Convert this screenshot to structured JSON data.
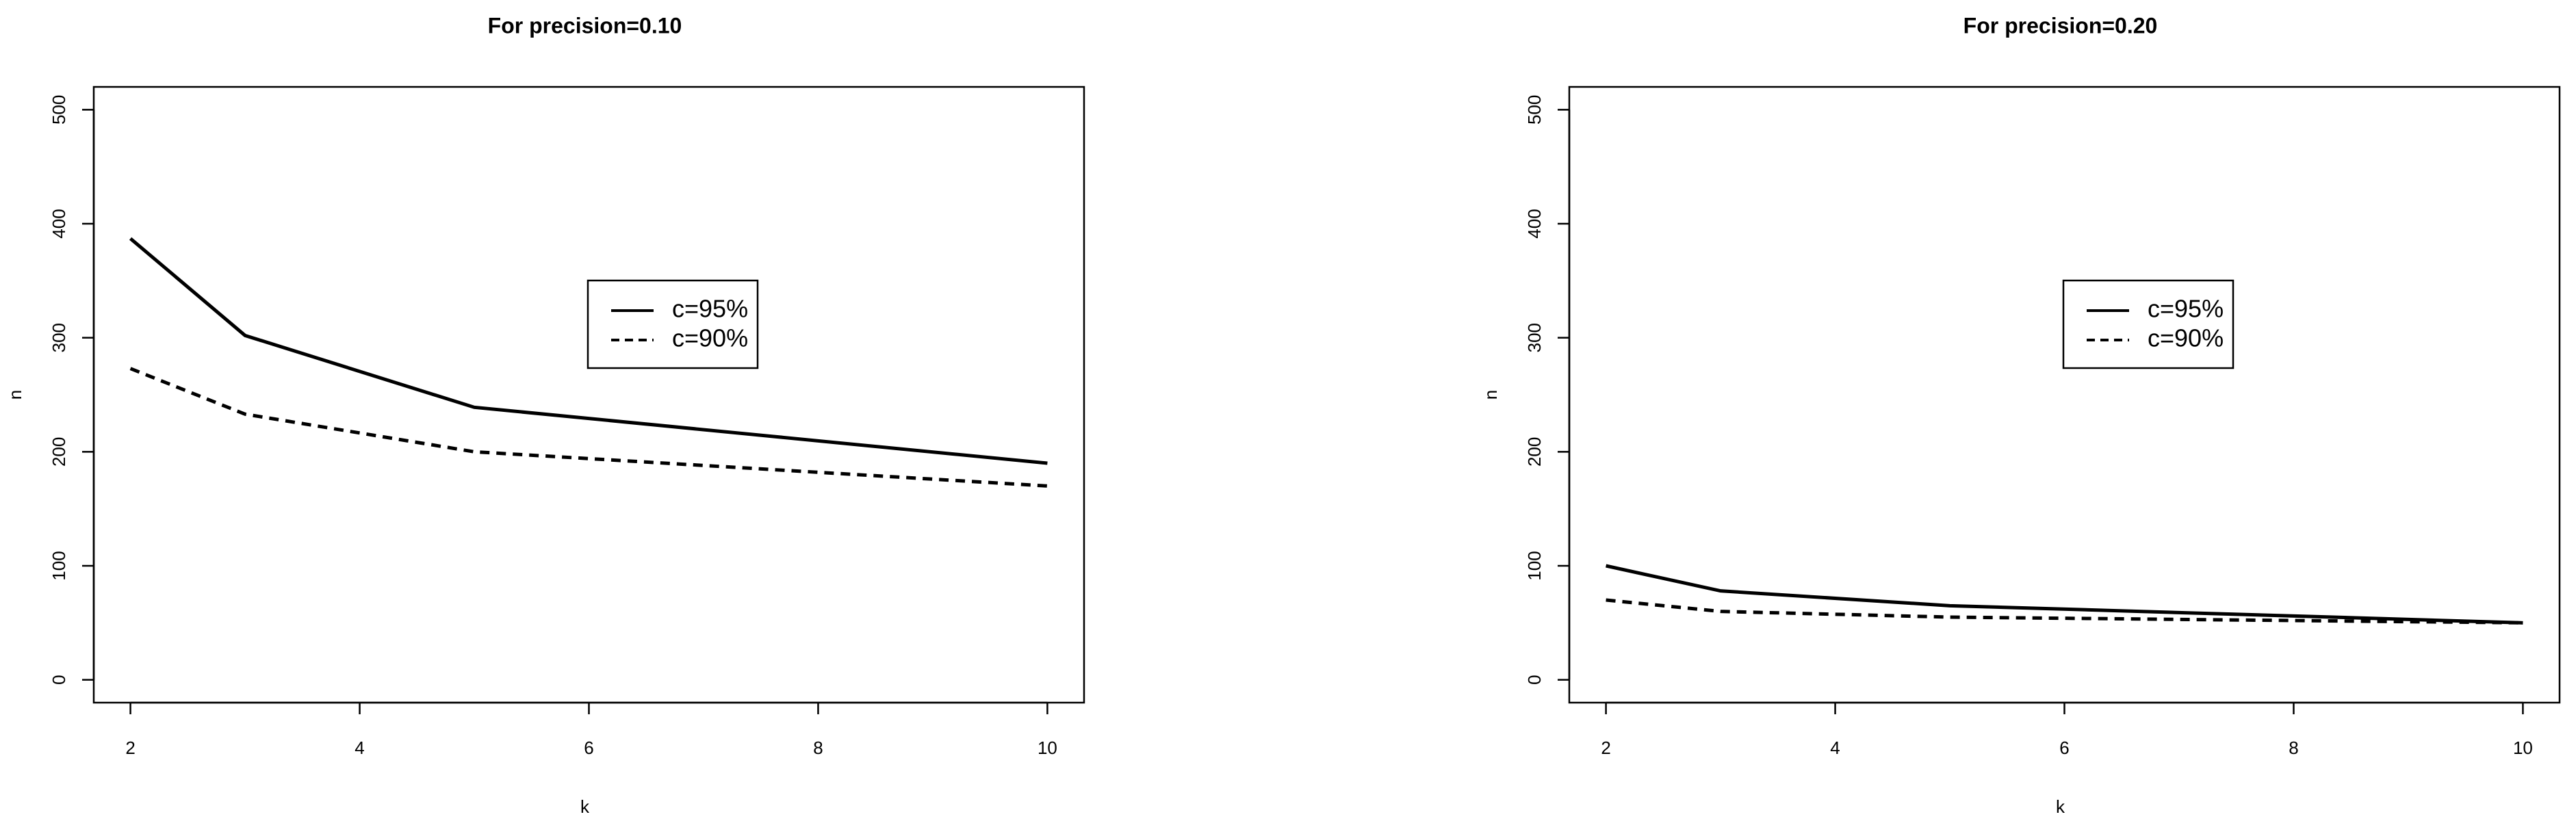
{
  "chart_data": [
    {
      "type": "line",
      "title": "For precision=0.10",
      "x_label": "k",
      "y_label": "n",
      "x": [
        2,
        3,
        5,
        10
      ],
      "series": [
        {
          "name": "c=95%",
          "color": "#000000",
          "linestyle": "solid",
          "values": [
            387,
            302,
            239,
            190
          ]
        },
        {
          "name": "c=90%",
          "color": "#000000",
          "linestyle": "dashed",
          "values": [
            273,
            233,
            200,
            170
          ]
        }
      ],
      "xlim": [
        1.68,
        10.32
      ],
      "ylim": [
        -20,
        520
      ],
      "xticks": [
        2,
        4,
        6,
        8,
        10
      ],
      "yticks": [
        0,
        100,
        200,
        300,
        400,
        500
      ]
    },
    {
      "type": "line",
      "title": "For precision=0.20",
      "x_label": "k",
      "y_label": "n",
      "x": [
        2,
        3,
        5,
        10
      ],
      "series": [
        {
          "name": "c=95%",
          "color": "#000000",
          "linestyle": "solid",
          "values": [
            100,
            78,
            65,
            50
          ]
        },
        {
          "name": "c=90%",
          "color": "#000000",
          "linestyle": "dashed",
          "values": [
            70,
            60,
            55,
            50
          ]
        }
      ],
      "xlim": [
        1.68,
        10.32
      ],
      "ylim": [
        -20,
        520
      ],
      "xticks": [
        2,
        4,
        6,
        8,
        10
      ],
      "yticks": [
        0,
        100,
        200,
        300,
        400,
        500
      ]
    }
  ]
}
